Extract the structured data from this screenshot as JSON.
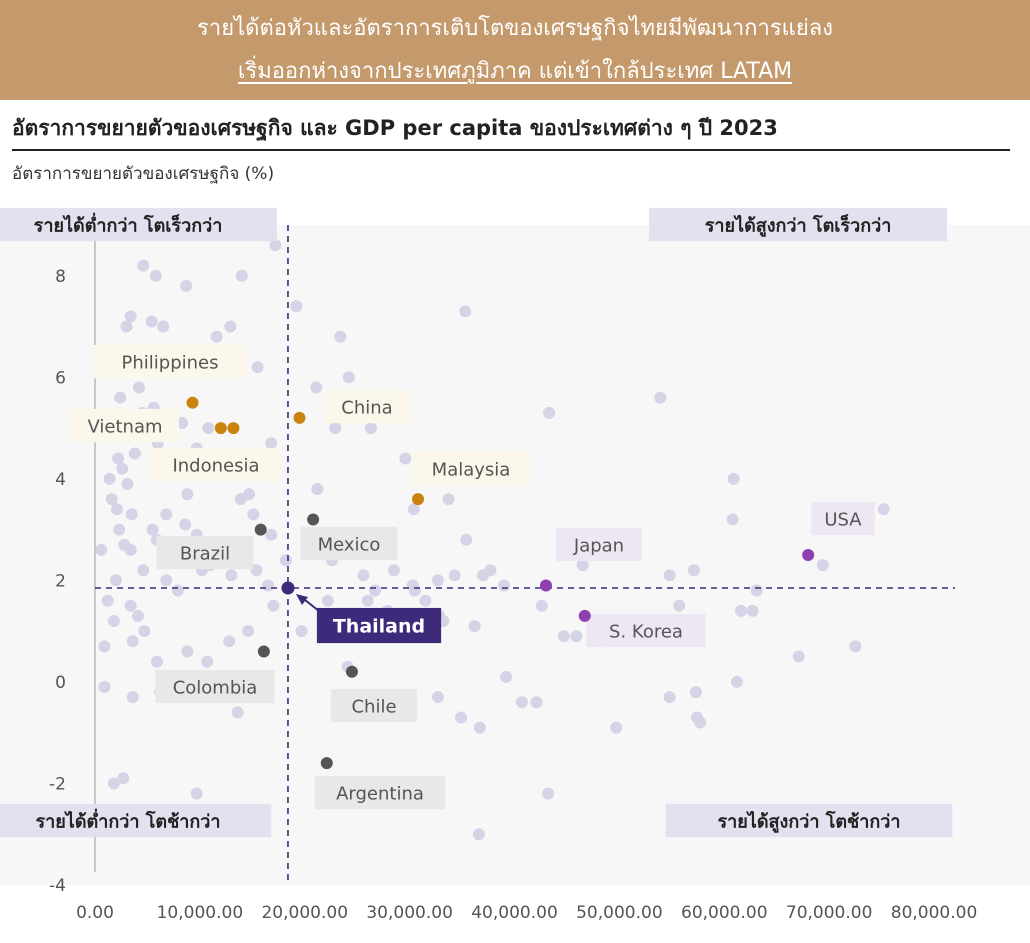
{
  "banner": {
    "line1": "รายได้ต่อหัวและอัตราการเติบโตของเศรษฐกิจไทยมีพัฒนาการแย่ลง",
    "line2": "เริ่มออกห่างจากประเทศภูมิภาค แต่เข้าใกล้ประเทศ LATAM"
  },
  "colors": {
    "banner_bg": "#c49a6c",
    "background_dot": "#d6d3e6",
    "asean": "#c98410",
    "latam": "#555555",
    "developed": "#8e3fb0",
    "thailand": "#3d2a7a",
    "quadrant_label_bg": "#e3e0ef",
    "grid_bg": "#f4f4f4",
    "reference_line": "#3d2a7a"
  },
  "chart_data": {
    "type": "scatter",
    "title": "อัตราการขยายตัวของเศรษฐกิจ และ GDP per capita ของประเทศต่าง ๆ ปี 2023",
    "ylabel": "อัตราการขยายตัวของเศรษฐกิจ (%)",
    "xlabel": "",
    "xlim": [
      0,
      82000
    ],
    "ylim": [
      -4,
      9
    ],
    "x_ticks": [
      "0.00",
      "10,000.00",
      "20,000.00",
      "30,000.00",
      "40,000.00",
      "50,000.00",
      "60,000.00",
      "70,000.00",
      "80,000.00"
    ],
    "y_ticks": [
      "8",
      "6",
      "4",
      "2",
      "0",
      "-2",
      "-4"
    ],
    "reference_lines": {
      "x": 18400,
      "y": 1.85
    },
    "quadrant_labels": {
      "top_left": "รายได้ต่ำกว่า โตเร็วกว่า",
      "top_right": "รายได้สูงกว่า โตเร็วกว่า",
      "bottom_left": "รายได้ต่ำกว่า โตช้ากว่า",
      "bottom_right": "รายได้สูงกว่า โตช้ากว่า"
    },
    "highlighted": [
      {
        "name": "Philippines",
        "x": 9300,
        "y": 5.5,
        "group": "asean"
      },
      {
        "name": "Vietnam",
        "x": 12000,
        "y": 5.0,
        "group": "asean"
      },
      {
        "name": "Indonesia",
        "x": 13200,
        "y": 5.0,
        "group": "asean"
      },
      {
        "name": "China",
        "x": 19500,
        "y": 5.2,
        "group": "asean"
      },
      {
        "name": "Malaysia",
        "x": 30800,
        "y": 3.6,
        "group": "asean"
      },
      {
        "name": "Brazil",
        "x": 15800,
        "y": 3.0,
        "group": "latam"
      },
      {
        "name": "Mexico",
        "x": 20800,
        "y": 3.2,
        "group": "latam"
      },
      {
        "name": "Colombia",
        "x": 16100,
        "y": 0.6,
        "group": "latam"
      },
      {
        "name": "Chile",
        "x": 24500,
        "y": 0.2,
        "group": "latam"
      },
      {
        "name": "Argentina",
        "x": 22100,
        "y": -1.6,
        "group": "latam"
      },
      {
        "name": "Japan",
        "x": 43000,
        "y": 1.9,
        "group": "developed"
      },
      {
        "name": "S. Korea",
        "x": 46700,
        "y": 1.3,
        "group": "developed"
      },
      {
        "name": "USA",
        "x": 68000,
        "y": 2.5,
        "group": "developed"
      },
      {
        "name": "Thailand",
        "x": 18400,
        "y": 1.85,
        "group": "thailand"
      }
    ],
    "other_countries": [
      [
        3300,
        6.1
      ],
      [
        4600,
        8.2
      ],
      [
        5800,
        8.0
      ],
      [
        6500,
        7.0
      ],
      [
        8700,
        7.8
      ],
      [
        12900,
        7.0
      ],
      [
        17200,
        8.6
      ],
      [
        14000,
        8.0
      ],
      [
        1500,
        6.1
      ],
      [
        2400,
        5.6
      ],
      [
        3000,
        7.0
      ],
      [
        3400,
        7.2
      ],
      [
        5400,
        7.1
      ],
      [
        2200,
        4.4
      ],
      [
        2600,
        4.2
      ],
      [
        3100,
        3.9
      ],
      [
        3800,
        4.5
      ],
      [
        4500,
        5.3
      ],
      [
        6000,
        4.7
      ],
      [
        7200,
        4.9
      ],
      [
        8300,
        5.1
      ],
      [
        9700,
        4.6
      ],
      [
        10800,
        5.0
      ],
      [
        1600,
        3.6
      ],
      [
        2300,
        3.0
      ],
      [
        3400,
        2.6
      ],
      [
        4600,
        2.2
      ],
      [
        5900,
        2.8
      ],
      [
        7300,
        2.5
      ],
      [
        8600,
        3.1
      ],
      [
        9700,
        2.9
      ],
      [
        11000,
        2.3
      ],
      [
        12000,
        2.7
      ],
      [
        13900,
        3.6
      ],
      [
        15100,
        3.3
      ],
      [
        600,
        2.6
      ],
      [
        1200,
        1.6
      ],
      [
        1800,
        1.2
      ],
      [
        3400,
        1.5
      ],
      [
        4700,
        1.0
      ],
      [
        5900,
        0.4
      ],
      [
        900,
        0.7
      ],
      [
        3600,
        0.8
      ],
      [
        8800,
        0.6
      ],
      [
        10700,
        0.4
      ],
      [
        12800,
        0.8
      ],
      [
        14600,
        1.0
      ],
      [
        900,
        -0.1
      ],
      [
        3600,
        -0.3
      ],
      [
        6200,
        -0.2
      ],
      [
        13600,
        -0.6
      ],
      [
        2700,
        -1.9
      ],
      [
        1800,
        -2.0
      ],
      [
        9700,
        -2.2
      ],
      [
        16800,
        4.7
      ],
      [
        15500,
        6.2
      ],
      [
        11600,
        6.8
      ],
      [
        14700,
        3.7
      ],
      [
        7000,
        4.4
      ],
      [
        2400,
        5.0
      ],
      [
        4200,
        5.8
      ],
      [
        5600,
        5.4
      ],
      [
        6800,
        3.3
      ],
      [
        8800,
        3.7
      ],
      [
        10200,
        2.2
      ],
      [
        11900,
        2.6
      ],
      [
        13000,
        2.1
      ],
      [
        15400,
        2.2
      ],
      [
        16500,
        1.9
      ],
      [
        1400,
        4.0
      ],
      [
        2100,
        3.4
      ],
      [
        3500,
        3.3
      ],
      [
        5500,
        3.0
      ],
      [
        6800,
        2.0
      ],
      [
        7900,
        1.8
      ],
      [
        2000,
        2.0
      ],
      [
        2800,
        2.7
      ],
      [
        4100,
        1.3
      ],
      [
        16800,
        2.9
      ],
      [
        18200,
        2.4
      ],
      [
        17000,
        1.5
      ],
      [
        19700,
        1.0
      ],
      [
        19200,
        7.4
      ],
      [
        23400,
        6.8
      ],
      [
        24200,
        6.0
      ],
      [
        26300,
        5.0
      ],
      [
        21100,
        5.8
      ],
      [
        21200,
        3.8
      ],
      [
        22900,
        5.0
      ],
      [
        29600,
        4.4
      ],
      [
        30400,
        3.4
      ],
      [
        33700,
        3.6
      ],
      [
        34400,
        4.4
      ],
      [
        35400,
        2.8
      ],
      [
        37700,
        2.2
      ],
      [
        24100,
        0.3
      ],
      [
        25600,
        2.1
      ],
      [
        26700,
        1.8
      ],
      [
        30500,
        1.8
      ],
      [
        32700,
        2.0
      ],
      [
        34300,
        2.1
      ],
      [
        32800,
        1.3
      ],
      [
        36200,
        1.1
      ],
      [
        35300,
        7.3
      ],
      [
        43300,
        5.3
      ],
      [
        53900,
        5.6
      ],
      [
        42600,
        1.5
      ],
      [
        44700,
        0.9
      ],
      [
        46500,
        2.3
      ],
      [
        48600,
        0.8
      ],
      [
        45900,
        0.9
      ],
      [
        39200,
        0.1
      ],
      [
        40700,
        -0.4
      ],
      [
        42100,
        -0.4
      ],
      [
        32700,
        -0.3
      ],
      [
        34900,
        -0.7
      ],
      [
        36700,
        -0.9
      ],
      [
        43200,
        -2.2
      ],
      [
        36600,
        -3.0
      ],
      [
        49700,
        -0.9
      ],
      [
        54800,
        2.1
      ],
      [
        55700,
        1.5
      ],
      [
        54800,
        -0.3
      ],
      [
        57100,
        2.2
      ],
      [
        57300,
        -0.2
      ],
      [
        57400,
        -0.7
      ],
      [
        57700,
        -0.8
      ],
      [
        60900,
        4.0
      ],
      [
        60800,
        3.2
      ],
      [
        61600,
        1.4
      ],
      [
        62700,
        1.4
      ],
      [
        63100,
        1.8
      ],
      [
        61200,
        0.0
      ],
      [
        69400,
        2.3
      ],
      [
        67100,
        0.5
      ],
      [
        72500,
        0.7
      ],
      [
        75200,
        3.4
      ],
      [
        30300,
        1.9
      ],
      [
        29400,
        1.3
      ],
      [
        31500,
        1.6
      ],
      [
        27900,
        1.4
      ],
      [
        33200,
        1.2
      ],
      [
        37000,
        2.1
      ],
      [
        39000,
        1.9
      ],
      [
        26000,
        1.6
      ],
      [
        28500,
        2.2
      ],
      [
        22600,
        2.4
      ],
      [
        22200,
        1.6
      ]
    ]
  }
}
